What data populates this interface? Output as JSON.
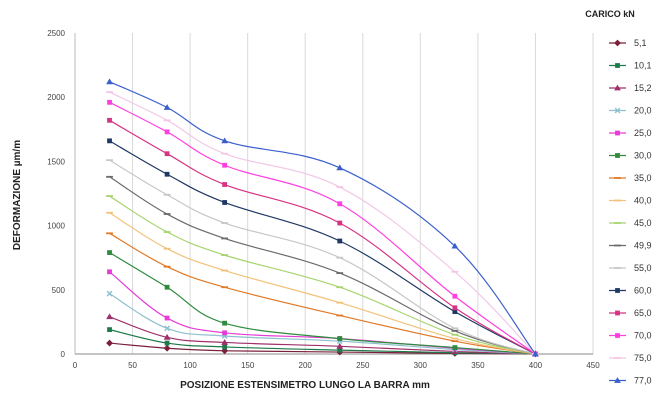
{
  "chart_data": {
    "type": "line",
    "xlabel": "POSIZIONE ESTENSIMETRO LUNGO LA BARRA mm",
    "ylabel": "DEFORMAZIONE µm/m",
    "legend_title": "CARICO  kN",
    "legend_position": "right",
    "grid": "vertical",
    "xlim": [
      0,
      450
    ],
    "ylim": [
      0,
      2500
    ],
    "x_ticks": [
      "0",
      "50",
      "100",
      "150",
      "200",
      "250",
      "300",
      "350",
      "400",
      "450"
    ],
    "y_ticks": [
      "0",
      "500",
      "1000",
      "1500",
      "2000",
      "2500"
    ],
    "x": [
      30,
      80,
      130,
      230,
      330,
      400
    ],
    "series": [
      {
        "name": "5,1",
        "color": "#7b1f3a",
        "marker": "diamond",
        "values": [
          85,
          45,
          25,
          15,
          5,
          0
        ]
      },
      {
        "name": "10,1",
        "color": "#1e7a4a",
        "marker": "square",
        "values": [
          190,
          85,
          55,
          30,
          10,
          0
        ]
      },
      {
        "name": "15,2",
        "color": "#a0306a",
        "marker": "triangle",
        "values": [
          290,
          130,
          90,
          60,
          20,
          0
        ]
      },
      {
        "name": "20,0",
        "color": "#8fc0d0",
        "marker": "x",
        "values": [
          470,
          200,
          140,
          100,
          35,
          0
        ]
      },
      {
        "name": "25,0",
        "color": "#e63bd4",
        "marker": "square",
        "values": [
          640,
          280,
          165,
          120,
          45,
          0
        ]
      },
      {
        "name": "30,0",
        "color": "#2e8b3e",
        "marker": "square",
        "values": [
          790,
          520,
          240,
          120,
          50,
          0
        ]
      },
      {
        "name": "35,0",
        "color": "#e07a28",
        "marker": "dash",
        "values": [
          940,
          680,
          520,
          300,
          100,
          0
        ]
      },
      {
        "name": "40,0",
        "color": "#f2c27a",
        "marker": "dash",
        "values": [
          1100,
          820,
          650,
          400,
          120,
          0
        ]
      },
      {
        "name": "45,0",
        "color": "#a8d46f",
        "marker": "dash",
        "values": [
          1230,
          950,
          770,
          520,
          150,
          0
        ]
      },
      {
        "name": "49,9",
        "color": "#6b6b6b",
        "marker": "dash",
        "values": [
          1380,
          1090,
          900,
          630,
          180,
          0
        ]
      },
      {
        "name": "55,0",
        "color": "#c7c7c7",
        "marker": "dash",
        "values": [
          1510,
          1240,
          1020,
          750,
          200,
          0
        ]
      },
      {
        "name": "60,0",
        "color": "#1f3864",
        "marker": "square",
        "values": [
          1660,
          1400,
          1180,
          880,
          330,
          0
        ]
      },
      {
        "name": "65,0",
        "color": "#d63384",
        "marker": "square",
        "values": [
          1820,
          1560,
          1320,
          1020,
          360,
          0
        ]
      },
      {
        "name": "70,0",
        "color": "#ff3fe0",
        "marker": "square",
        "values": [
          1960,
          1730,
          1470,
          1170,
          450,
          0
        ]
      },
      {
        "name": "75,0",
        "color": "#f2c8e6",
        "marker": "dash",
        "values": [
          2040,
          1820,
          1560,
          1300,
          640,
          0
        ]
      },
      {
        "name": "77,0",
        "color": "#3a5fcd",
        "marker": "triangle",
        "values": [
          2120,
          1920,
          1660,
          1450,
          840,
          0
        ]
      }
    ]
  }
}
